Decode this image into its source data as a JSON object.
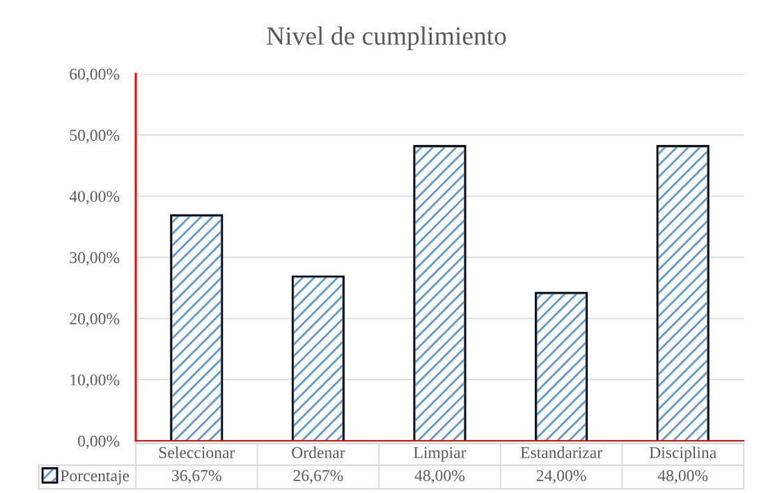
{
  "chart_data": {
    "type": "bar",
    "title": "Nivel de cumplimiento",
    "categories": [
      "Seleccionar",
      "Ordenar",
      "Limpiar",
      "Estandarizar",
      "Disciplina"
    ],
    "series": [
      {
        "name": "Porcentaje",
        "color": "#5b9bd5",
        "values": [
          36.67,
          26.67,
          48,
          24,
          48
        ],
        "value_labels": [
          "36,67%",
          "26,67%",
          "48,00%",
          "24,00%",
          "48,00%"
        ]
      }
    ],
    "ylim": [
      0,
      60
    ],
    "yticks": [
      {
        "value": 0,
        "label": "0,00%"
      },
      {
        "value": 10,
        "label": "10,00%"
      },
      {
        "value": 20,
        "label": "20,00%"
      },
      {
        "value": 30,
        "label": "30,00%"
      },
      {
        "value": 40,
        "label": "40,00%"
      },
      {
        "value": 50,
        "label": "50,00%"
      },
      {
        "value": 60,
        "label": "60,00%"
      }
    ],
    "grid": "y",
    "legend": "bottom left"
  }
}
